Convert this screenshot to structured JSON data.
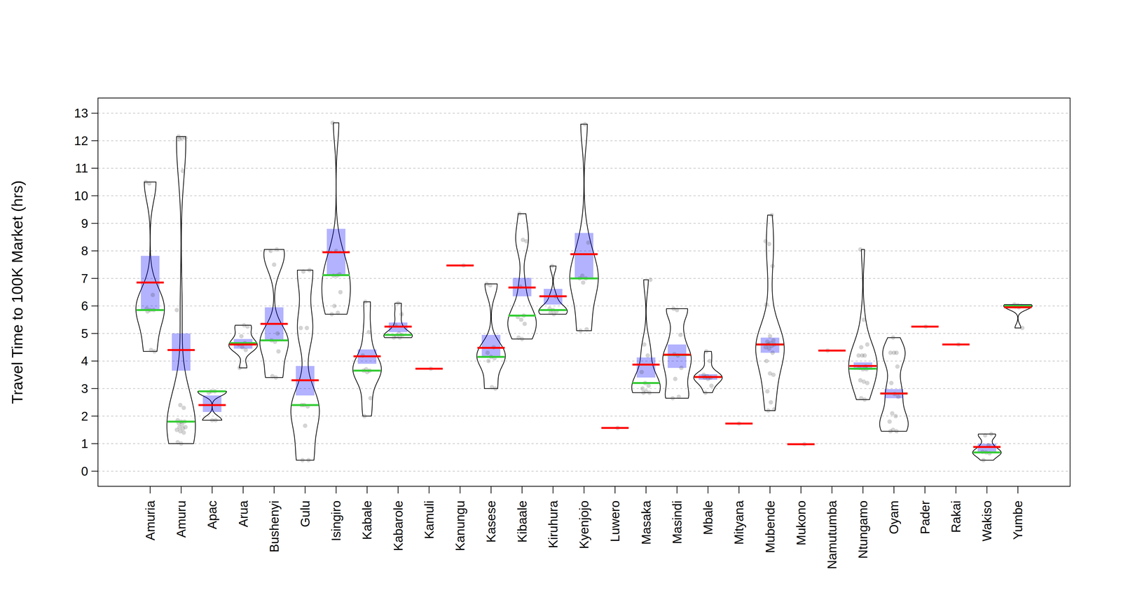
{
  "chart_data": {
    "type": "violin",
    "y_label": "Travel Time to 100K Market (hrs)",
    "categories": [
      "Amuria",
      "Amuru",
      "Apac",
      "Arua",
      "Bushenyi",
      "Gulu",
      "Isingiro",
      "Kabale",
      "Kabarole",
      "Kamuli",
      "Kanungu",
      "Kasese",
      "Kibaale",
      "Kiruhura",
      "Kyenjojo",
      "Luwero",
      "Masaka",
      "Masindi",
      "Mbale",
      "Mityana",
      "Mubende",
      "Mukono",
      "Namutumba",
      "Ntungamo",
      "Oyam",
      "Pader",
      "Rakai",
      "Wakiso",
      "Yumbe"
    ],
    "means": [
      6.85,
      4.4,
      2.4,
      4.6,
      5.35,
      3.3,
      7.95,
      4.17,
      5.25,
      3.72,
      7.47,
      4.48,
      6.67,
      6.35,
      7.88,
      1.57,
      3.87,
      4.23,
      3.42,
      1.73,
      4.6,
      0.98,
      4.38,
      3.82,
      2.82,
      5.25,
      4.6,
      0.88,
      5.95
    ],
    "medians": [
      5.85,
      1.8,
      2.9,
      4.65,
      4.75,
      2.4,
      7.12,
      3.65,
      4.95,
      null,
      null,
      4.15,
      5.65,
      5.85,
      7.0,
      null,
      3.2,
      4.22,
      3.42,
      null,
      4.6,
      null,
      null,
      3.72,
      2.82,
      null,
      null,
      0.68,
      6.0
    ],
    "box_low": [
      5.85,
      3.65,
      2.15,
      4.45,
      4.75,
      2.75,
      7.12,
      3.9,
      5.05,
      null,
      null,
      4.12,
      6.35,
      6.05,
      7.0,
      null,
      3.4,
      3.75,
      3.32,
      null,
      4.3,
      null,
      null,
      3.68,
      2.65,
      null,
      null,
      0.68,
      5.92
    ],
    "box_high": [
      7.82,
      5.0,
      2.75,
      4.8,
      5.95,
      3.82,
      8.8,
      4.42,
      5.4,
      null,
      null,
      4.95,
      7.02,
      6.62,
      8.65,
      null,
      4.13,
      4.6,
      3.52,
      null,
      4.85,
      null,
      null,
      3.95,
      2.98,
      null,
      null,
      1.0,
      6.05
    ],
    "points": [
      [
        10.5,
        10.45,
        6.4,
        5.9,
        5.85,
        5.85,
        5.8,
        4.4,
        4.35
      ],
      [
        12.15,
        12.1,
        12.1,
        12.05,
        10.9,
        5.85,
        2.4,
        2.3,
        1.85,
        1.8,
        1.8,
        1.75,
        1.7,
        1.6,
        1.6,
        1.55,
        1.5,
        1.45,
        1.4,
        1.05,
        1.0
      ],
      [
        2.9,
        2.9,
        2.85,
        1.85,
        1.85
      ],
      [
        5.3,
        5.25,
        4.9,
        4.65,
        4.6,
        4.5,
        4.4,
        3.75
      ],
      [
        8.05,
        8.0,
        7.5,
        5.0,
        4.75,
        4.7,
        4.35,
        3.45,
        3.4
      ],
      [
        7.3,
        7.25,
        5.2,
        5.2,
        2.4,
        2.35,
        2.4,
        1.65,
        0.4,
        0.4
      ],
      [
        12.65,
        8.0,
        7.15,
        7.1,
        7.1,
        6.5,
        6.0,
        5.75,
        5.7
      ],
      [
        6.15,
        5.05,
        4.2,
        3.7,
        3.65,
        3.65,
        3.6,
        2.65,
        2.0
      ],
      [
        6.1,
        5.7,
        5.3,
        5.0,
        4.95,
        4.9,
        4.85,
        4.85
      ],
      [
        3.72
      ],
      [
        7.47
      ],
      [
        6.8,
        6.75,
        4.5,
        4.3,
        4.15,
        4.1,
        4.0,
        3.05,
        3.0
      ],
      [
        9.35,
        8.4,
        8.35,
        6.7,
        5.65,
        5.6,
        5.5,
        5.35,
        4.85,
        4.8
      ],
      [
        7.45,
        6.35,
        5.9,
        5.85,
        5.8,
        5.75,
        5.7
      ],
      [
        12.6,
        8.3,
        7.1,
        7.0,
        7.0,
        6.85,
        5.15,
        5.1
      ],
      [
        1.57
      ],
      [
        6.95,
        4.6,
        4.2,
        3.6,
        3.2,
        3.1,
        3.0,
        2.9,
        2.85,
        2.85
      ],
      [
        5.9,
        5.85,
        4.95,
        4.25,
        4.2,
        3.75,
        3.35,
        2.7,
        2.65
      ],
      [
        4.35,
        4.0,
        3.5,
        3.45,
        3.4,
        3.4,
        3.35,
        3.1,
        2.85
      ],
      [
        1.73
      ],
      [
        9.3,
        8.35,
        8.25,
        7.45,
        6.05,
        4.9,
        4.75,
        4.7,
        4.65,
        4.6,
        4.6,
        4.55,
        4.5,
        4.45,
        4.3,
        4.0,
        3.55,
        3.5,
        2.9,
        2.5,
        2.25,
        2.2
      ],
      [
        0.98
      ],
      [
        4.38
      ],
      [
        8.05,
        5.5,
        4.6,
        4.5,
        4.2,
        4.2,
        4.2,
        3.8,
        3.75,
        3.7,
        3.7,
        3.3,
        3.25,
        3.2,
        2.65,
        2.6
      ],
      [
        4.85,
        4.3,
        4.3,
        4.3,
        3.8,
        3.2,
        2.8,
        2.7,
        2.1,
        2.0,
        1.8,
        1.5,
        1.45,
        1.45
      ],
      [
        5.25
      ],
      [
        4.6
      ],
      [
        1.35,
        1.3,
        0.95,
        0.7,
        0.68,
        0.65,
        0.4
      ],
      [
        6.05,
        6.02,
        6.0,
        5.98,
        5.95,
        5.2
      ]
    ],
    "ylim": [
      -0.55,
      13.55
    ],
    "yticks": [
      0,
      1,
      2,
      3,
      4,
      5,
      6,
      7,
      8,
      9,
      10,
      11,
      12,
      13
    ],
    "grid": true
  }
}
